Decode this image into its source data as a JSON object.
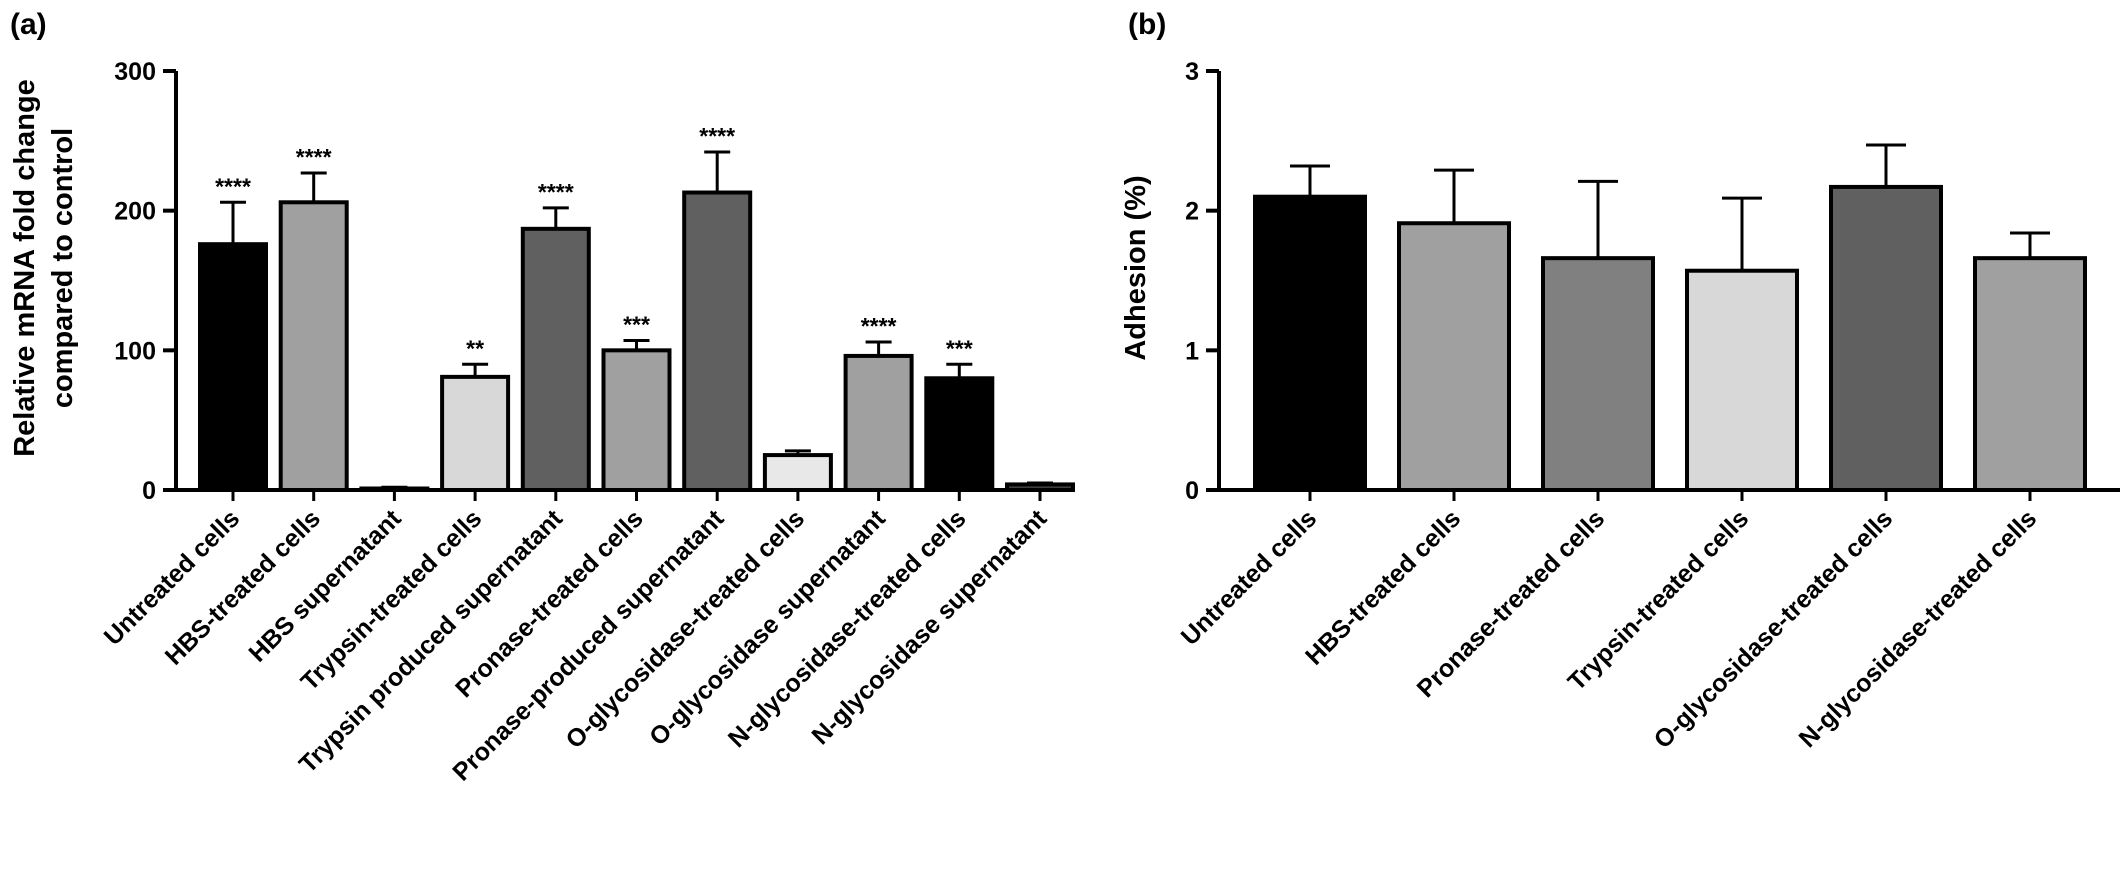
{
  "chart_data": [
    {
      "panel_label": "(a)",
      "type": "bar",
      "title": "",
      "xlabel": "",
      "ylabel": [
        "Relative mRNA fold change",
        "compared to control"
      ],
      "ylim": [
        0,
        300
      ],
      "yticks": [
        0,
        100,
        200,
        300
      ],
      "categories": [
        "Untreated cells",
        "HBS-treated cells",
        "HBS supernatant",
        "Trypsin-treated cells",
        "Trypsin produced supernatant",
        "Pronase-treated cells",
        "Pronase-produced supernatant",
        "O-glycosidase-treated cells",
        "O-glycosidase supernatant",
        "N-glycosidase-treated cells",
        "N-glycosidase supernatant"
      ],
      "values": [
        176,
        206,
        1,
        81,
        187,
        100,
        213,
        25,
        96,
        80,
        4
      ],
      "errors": [
        30,
        21,
        1,
        9,
        15,
        7,
        29,
        3,
        10,
        10,
        1
      ],
      "significance": [
        "****",
        "****",
        "",
        "**",
        "****",
        "***",
        "****",
        "",
        "****",
        "***",
        ""
      ],
      "bar_colors": [
        "#000000",
        "#a0a0a0",
        "#404040",
        "#d8d8d8",
        "#606060",
        "#a0a0a0",
        "#606060",
        "#e8e8e8",
        "#a0a0a0",
        "#000000",
        "#404040"
      ],
      "grid": false
    },
    {
      "panel_label": "(b)",
      "type": "bar",
      "title": "",
      "xlabel": "",
      "ylabel": [
        "Adhesion (%)"
      ],
      "ylim": [
        0,
        3
      ],
      "yticks": [
        0,
        1,
        2,
        3
      ],
      "categories": [
        "Untreated cells",
        "HBS-treated cells",
        "Pronase-treated cells",
        "Trypsin-treated cells",
        "O-glycosidase-treated cells",
        "N-glycosidase-treated cells"
      ],
      "values": [
        2.1,
        1.91,
        1.66,
        1.57,
        2.17,
        1.66
      ],
      "errors": [
        0.22,
        0.38,
        0.55,
        0.52,
        0.3,
        0.18
      ],
      "significance": [
        "",
        "",
        "",
        "",
        "",
        ""
      ],
      "bar_colors": [
        "#000000",
        "#a0a0a0",
        "#808080",
        "#d8d8d8",
        "#606060",
        "#a0a0a0"
      ],
      "grid": false
    }
  ]
}
